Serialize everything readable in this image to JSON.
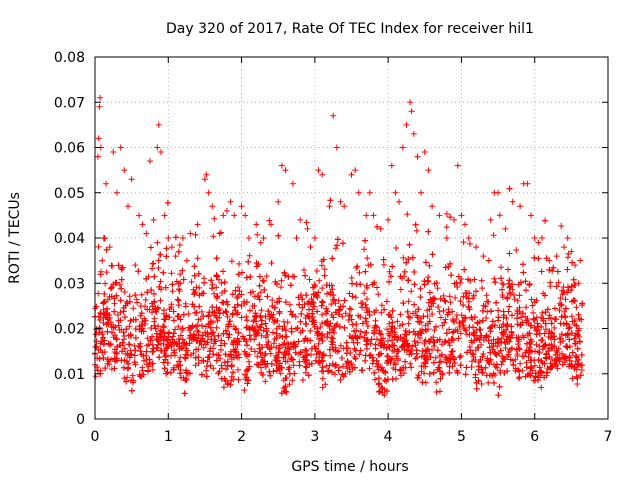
{
  "chart_data": {
    "type": "scatter",
    "title": "Day 320 of 2017, Rate Of TEC Index for receiver hil1",
    "xlabel": "GPS time / hours",
    "ylabel": "ROTI / TECUs",
    "xlim": [
      0,
      7
    ],
    "ylim": [
      0,
      0.08
    ],
    "xticks": [
      0,
      1,
      2,
      3,
      4,
      5,
      6,
      7
    ],
    "yticks": [
      0,
      0.01,
      0.02,
      0.03,
      0.04,
      0.05,
      0.06,
      0.07,
      0.08
    ],
    "xtick_labels": [
      "0",
      "1",
      "2",
      "3",
      "4",
      "5",
      "6",
      "7"
    ],
    "ytick_labels": [
      "0",
      "0.01",
      "0.02",
      "0.03",
      "0.04",
      "0.05",
      "0.06",
      "0.07",
      "0.08"
    ],
    "grid": true,
    "marker": "plus",
    "color": "#ff0000",
    "series": [
      {
        "name": "ROTI",
        "points": [
          [
            0.0,
            0.012
          ],
          [
            0.02,
            0.016
          ],
          [
            0.04,
            0.058
          ],
          [
            0.05,
            0.062
          ],
          [
            0.06,
            0.069
          ],
          [
            0.07,
            0.071
          ],
          [
            0.08,
            0.06
          ],
          [
            0.1,
            0.035
          ],
          [
            0.12,
            0.04
          ],
          [
            0.15,
            0.052
          ],
          [
            0.2,
            0.038
          ],
          [
            0.25,
            0.059
          ],
          [
            0.3,
            0.05
          ],
          [
            0.35,
            0.06
          ],
          [
            0.4,
            0.055
          ],
          [
            0.45,
            0.047
          ],
          [
            0.5,
            0.053
          ],
          [
            0.55,
            0.034
          ],
          [
            0.6,
            0.045
          ],
          [
            0.65,
            0.043
          ],
          [
            0.7,
            0.041
          ],
          [
            0.75,
            0.057
          ],
          [
            0.8,
            0.044
          ],
          [
            0.85,
            0.06
          ],
          [
            0.87,
            0.065
          ],
          [
            0.9,
            0.059
          ],
          [
            0.95,
            0.045
          ],
          [
            1.0,
            0.04
          ],
          [
            1.05,
            0.038
          ],
          [
            1.1,
            0.036
          ],
          [
            1.2,
            0.04
          ],
          [
            1.3,
            0.041
          ],
          [
            1.4,
            0.043
          ],
          [
            1.5,
            0.053
          ],
          [
            1.52,
            0.054
          ],
          [
            1.55,
            0.05
          ],
          [
            1.6,
            0.047
          ],
          [
            1.7,
            0.041
          ],
          [
            1.75,
            0.045
          ],
          [
            1.8,
            0.046
          ],
          [
            1.85,
            0.048
          ],
          [
            1.9,
            0.045
          ],
          [
            2.0,
            0.047
          ],
          [
            2.05,
            0.045
          ],
          [
            2.1,
            0.04
          ],
          [
            2.2,
            0.043
          ],
          [
            2.3,
            0.04
          ],
          [
            2.4,
            0.043
          ],
          [
            2.5,
            0.048
          ],
          [
            2.55,
            0.056
          ],
          [
            2.6,
            0.055
          ],
          [
            2.7,
            0.052
          ],
          [
            2.75,
            0.04
          ],
          [
            2.8,
            0.044
          ],
          [
            2.9,
            0.042
          ],
          [
            3.0,
            0.04
          ],
          [
            3.05,
            0.055
          ],
          [
            3.1,
            0.054
          ],
          [
            3.2,
            0.047
          ],
          [
            3.25,
            0.067
          ],
          [
            3.3,
            0.06
          ],
          [
            3.35,
            0.048
          ],
          [
            3.4,
            0.047
          ],
          [
            3.5,
            0.054
          ],
          [
            3.55,
            0.055
          ],
          [
            3.6,
            0.05
          ],
          [
            3.7,
            0.045
          ],
          [
            3.75,
            0.05
          ],
          [
            3.8,
            0.045
          ],
          [
            3.9,
            0.042
          ],
          [
            4.0,
            0.044
          ],
          [
            4.05,
            0.056
          ],
          [
            4.1,
            0.05
          ],
          [
            4.15,
            0.048
          ],
          [
            4.2,
            0.06
          ],
          [
            4.25,
            0.065
          ],
          [
            4.3,
            0.07
          ],
          [
            4.32,
            0.068
          ],
          [
            4.35,
            0.063
          ],
          [
            4.4,
            0.058
          ],
          [
            4.45,
            0.05
          ],
          [
            4.5,
            0.059
          ],
          [
            4.55,
            0.055
          ],
          [
            4.6,
            0.047
          ],
          [
            4.7,
            0.045
          ],
          [
            4.8,
            0.04
          ],
          [
            4.9,
            0.044
          ],
          [
            4.95,
            0.056
          ],
          [
            5.0,
            0.045
          ],
          [
            5.05,
            0.043
          ],
          [
            5.1,
            0.04
          ],
          [
            5.2,
            0.038
          ],
          [
            5.3,
            0.036
          ],
          [
            5.4,
            0.044
          ],
          [
            5.45,
            0.05
          ],
          [
            5.5,
            0.05
          ],
          [
            5.6,
            0.042
          ],
          [
            5.7,
            0.048
          ],
          [
            5.8,
            0.047
          ],
          [
            5.85,
            0.052
          ],
          [
            5.9,
            0.052
          ],
          [
            5.95,
            0.045
          ],
          [
            6.0,
            0.04
          ],
          [
            6.05,
            0.039
          ],
          [
            6.1,
            0.04
          ],
          [
            6.2,
            0.035
          ],
          [
            6.3,
            0.036
          ],
          [
            6.4,
            0.038
          ],
          [
            6.45,
            0.04
          ],
          [
            6.5,
            0.037
          ],
          [
            6.55,
            0.034
          ],
          [
            6.6,
            0.03
          ],
          [
            6.62,
            0.035
          ]
        ]
      }
    ],
    "dense_cloud": {
      "x_range": [
        0,
        6.65
      ],
      "y_range": [
        0.005,
        0.045
      ],
      "median": 0.018,
      "count": 3400
    }
  }
}
